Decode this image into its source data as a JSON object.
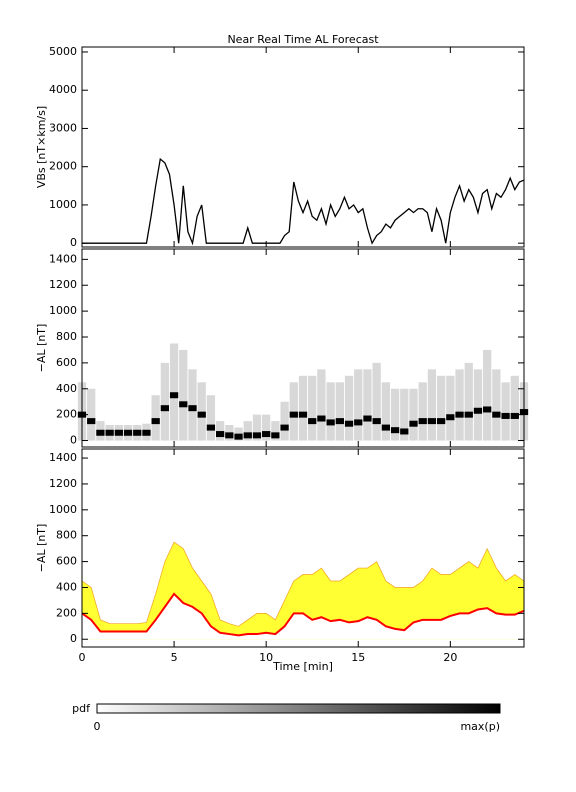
{
  "title": "Near Real Time AL Forecast",
  "chart_data": [
    {
      "type": "line",
      "ylabel": "VBs [nT×km/s]",
      "x": [
        0,
        0.25,
        0.5,
        0.75,
        1,
        1.25,
        1.5,
        1.75,
        2,
        2.25,
        2.5,
        2.75,
        3,
        3.25,
        3.5,
        3.75,
        4,
        4.25,
        4.5,
        4.75,
        5,
        5.25,
        5.5,
        5.75,
        6,
        6.25,
        6.5,
        6.75,
        7,
        7.25,
        7.5,
        7.75,
        8,
        8.25,
        8.5,
        8.75,
        9,
        9.25,
        9.5,
        9.75,
        10,
        10.25,
        10.5,
        10.75,
        11,
        11.25,
        11.5,
        11.75,
        12,
        12.25,
        12.5,
        12.75,
        13,
        13.25,
        13.5,
        13.75,
        14,
        14.25,
        14.5,
        14.75,
        15,
        15.25,
        15.5,
        15.75,
        16,
        16.25,
        16.5,
        16.75,
        17,
        17.25,
        17.5,
        17.75,
        18,
        18.25,
        18.5,
        18.75,
        19,
        19.25,
        19.5,
        19.75,
        20,
        20.25,
        20.5,
        20.75,
        21,
        21.25,
        21.5,
        21.75,
        22,
        22.25,
        22.5,
        22.75,
        23,
        23.25,
        23.5,
        23.75,
        24
      ],
      "series": [
        {
          "color": "#000000",
          "values": [
            0,
            0,
            0,
            0,
            0,
            0,
            0,
            0,
            0,
            0,
            0,
            0,
            0,
            0,
            0,
            700,
            1500,
            2200,
            2100,
            1800,
            1000,
            0,
            1500,
            300,
            0,
            700,
            1000,
            0,
            0,
            0,
            0,
            0,
            0,
            0,
            0,
            0,
            400,
            0,
            0,
            0,
            0,
            0,
            0,
            0,
            200,
            300,
            1600,
            1100,
            800,
            1100,
            700,
            600,
            900,
            500,
            1000,
            700,
            900,
            1200,
            900,
            1000,
            800,
            900,
            400,
            0,
            200,
            300,
            500,
            400,
            600,
            700,
            800,
            900,
            800,
            900,
            900,
            800,
            300,
            900,
            600,
            0,
            800,
            1200,
            1500,
            1100,
            1400,
            1200,
            800,
            1300,
            1400,
            900,
            1300,
            1200,
            1400,
            1700,
            1400,
            1600,
            1650
          ]
        }
      ],
      "xlim": [
        0,
        24
      ],
      "xticks": [
        0,
        5,
        10,
        15,
        20
      ],
      "ylim": [
        -100,
        5130
      ],
      "yticks": [
        0,
        1000,
        2000,
        3000,
        4000,
        5000
      ]
    },
    {
      "type": "density",
      "ylabel": "−AL [nT]",
      "x": [
        0,
        0.5,
        1,
        1.5,
        2,
        2.5,
        3,
        3.5,
        4,
        4.5,
        5,
        5.5,
        6,
        6.5,
        7,
        7.5,
        8,
        8.5,
        9,
        9.5,
        10,
        10.5,
        11,
        11.5,
        12,
        12.5,
        13,
        13.5,
        14,
        14.5,
        15,
        15.5,
        16,
        16.5,
        17,
        17.5,
        18,
        18.5,
        19,
        19.5,
        20,
        20.5,
        21,
        21.5,
        22,
        22.5,
        23,
        23.5,
        24
      ],
      "series": [
        {
          "color": "#000000",
          "values": [
            200,
            150,
            60,
            60,
            60,
            60,
            60,
            60,
            150,
            250,
            350,
            280,
            250,
            200,
            100,
            50,
            40,
            30,
            40,
            40,
            50,
            40,
            100,
            200,
            200,
            150,
            170,
            140,
            150,
            130,
            140,
            170,
            150,
            100,
            80,
            70,
            130,
            150,
            150,
            150,
            180,
            200,
            200,
            230,
            240,
            200,
            190,
            190,
            220
          ]
        },
        {
          "color": "#d8d8d8",
          "values": [
            450,
            400,
            150,
            120,
            120,
            120,
            120,
            130,
            350,
            600,
            750,
            700,
            550,
            450,
            350,
            150,
            120,
            100,
            150,
            200,
            200,
            150,
            300,
            450,
            500,
            500,
            550,
            450,
            450,
            500,
            550,
            550,
            600,
            450,
            400,
            400,
            400,
            450,
            550,
            500,
            500,
            550,
            600,
            550,
            700,
            550,
            450,
            500,
            450
          ]
        }
      ],
      "xlim": [
        0,
        24
      ],
      "xticks": [
        0,
        5,
        10,
        15,
        20
      ],
      "ylim": [
        -50,
        1480
      ],
      "yticks": [
        0,
        200,
        400,
        600,
        800,
        1000,
        1200,
        1400
      ]
    },
    {
      "type": "band",
      "ylabel": "−AL [nT]",
      "xlabel": "Time [min]",
      "x": [
        0,
        0.5,
        1,
        1.5,
        2,
        2.5,
        3,
        3.5,
        4,
        4.5,
        5,
        5.5,
        6,
        6.5,
        7,
        7.5,
        8,
        8.5,
        9,
        9.5,
        10,
        10.5,
        11,
        11.5,
        12,
        12.5,
        13,
        13.5,
        14,
        14.5,
        15,
        15.5,
        16,
        16.5,
        17,
        17.5,
        18,
        18.5,
        19,
        19.5,
        20,
        20.5,
        21,
        21.5,
        22,
        22.5,
        23,
        23.5,
        24
      ],
      "series": [
        {
          "color": "#ffff33",
          "values": [
            450,
            400,
            150,
            120,
            120,
            120,
            120,
            130,
            350,
            600,
            750,
            700,
            550,
            450,
            350,
            150,
            120,
            100,
            150,
            200,
            200,
            150,
            300,
            450,
            500,
            500,
            550,
            450,
            450,
            500,
            550,
            550,
            600,
            450,
            400,
            400,
            400,
            450,
            550,
            500,
            500,
            550,
            600,
            550,
            700,
            550,
            450,
            500,
            450
          ]
        },
        {
          "color": "#ff0000",
          "values": [
            200,
            150,
            60,
            60,
            60,
            60,
            60,
            60,
            150,
            250,
            350,
            280,
            250,
            200,
            100,
            50,
            40,
            30,
            40,
            40,
            50,
            40,
            100,
            200,
            200,
            150,
            170,
            140,
            150,
            130,
            140,
            170,
            150,
            100,
            80,
            70,
            130,
            150,
            150,
            150,
            180,
            200,
            200,
            230,
            240,
            200,
            190,
            190,
            220
          ]
        }
      ],
      "xlim": [
        0,
        24
      ],
      "xticks": [
        0,
        5,
        10,
        15,
        20
      ],
      "ylim": [
        -60,
        1470
      ],
      "yticks": [
        0,
        200,
        400,
        600,
        800,
        1000,
        1200,
        1400
      ]
    }
  ],
  "colorbar": {
    "label": "pdf",
    "min_label": "0",
    "max_label": "max(p)"
  }
}
